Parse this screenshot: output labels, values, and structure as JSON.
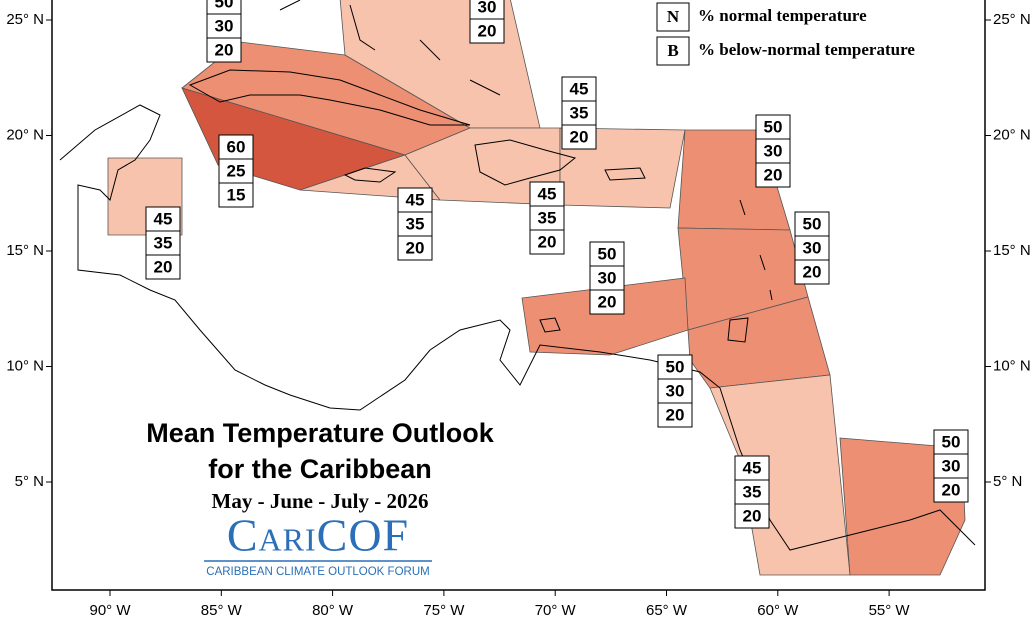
{
  "title": "Mean Temperature Outlook",
  "subtitle": "for the Caribbean",
  "period": "May - June - July - 2026",
  "logo": {
    "name": "CariCOF",
    "tagline": "CARIBBEAN CLIMATE OUTLOOK FORUM"
  },
  "legend": [
    {
      "key": "N",
      "label": "% normal temperature"
    },
    {
      "key": "B",
      "label": "% below-normal temperature"
    }
  ],
  "x_labels": [
    "90° W",
    "85° W",
    "80° W",
    "75° W",
    "70° W",
    "65° W",
    "60° W",
    "55° W"
  ],
  "y_labels": [
    "25° N",
    "20° N",
    "15° N",
    "10° N",
    "5° N"
  ],
  "regions": [
    {
      "values": [
        50,
        30,
        20
      ]
    },
    {
      "values": [
        30,
        20
      ]
    },
    {
      "values": [
        60,
        25,
        15
      ]
    },
    {
      "values": [
        45,
        35,
        20
      ]
    },
    {
      "values": [
        45,
        35,
        20
      ]
    },
    {
      "values": [
        45,
        35,
        20
      ]
    },
    {
      "values": [
        45,
        35,
        20
      ]
    },
    {
      "values": [
        50,
        30,
        20
      ]
    },
    {
      "values": [
        50,
        30,
        20
      ]
    },
    {
      "values": [
        50,
        30,
        20
      ]
    },
    {
      "values": [
        50,
        30,
        20
      ]
    },
    {
      "values": [
        45,
        35,
        20
      ]
    },
    {
      "values": [
        50,
        30,
        20
      ]
    }
  ]
}
